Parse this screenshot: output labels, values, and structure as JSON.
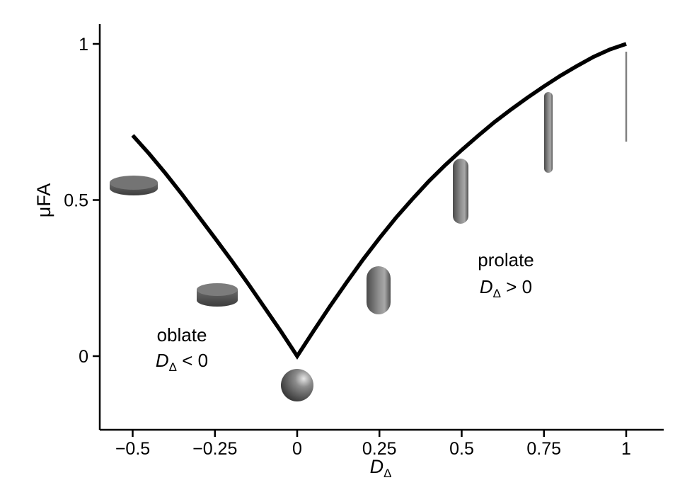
{
  "chart_data": {
    "type": "line",
    "title": "",
    "xlabel": "D",
    "xlabel_sub": "Δ",
    "ylabel": "μFA",
    "xlim": [
      -0.55,
      1.1
    ],
    "ylim": [
      -0.22,
      1.07
    ],
    "xticks": [
      -0.5,
      -0.25,
      0,
      0.25,
      0.5,
      0.75,
      1
    ],
    "xtick_labels": [
      "−0.5",
      "−0.25",
      "0",
      "0.25",
      "0.5",
      "0.75",
      "1"
    ],
    "yticks": [
      0,
      0.5,
      1
    ],
    "ytick_labels": [
      "0",
      "0.5",
      "1"
    ],
    "grid": false,
    "series": [
      {
        "x": [
          -0.5,
          -0.45,
          -0.4,
          -0.35,
          -0.3,
          -0.25,
          -0.2,
          -0.15,
          -0.1,
          -0.05,
          0,
          0.05,
          0.1,
          0.15,
          0.2,
          0.25,
          0.3,
          0.35,
          0.4,
          0.45,
          0.5,
          0.55,
          0.6,
          0.65,
          0.7,
          0.75,
          0.8,
          0.85,
          0.9,
          0.95,
          1
        ],
        "y": [
          0.707,
          0.648,
          0.585,
          0.518,
          0.448,
          0.378,
          0.307,
          0.233,
          0.157,
          0.08,
          0,
          0.081,
          0.16,
          0.236,
          0.309,
          0.378,
          0.443,
          0.503,
          0.56,
          0.612,
          0.66,
          0.706,
          0.75,
          0.79,
          0.828,
          0.864,
          0.898,
          0.929,
          0.958,
          0.982,
          1.0
        ],
        "color": "#000000"
      }
    ],
    "annotations": [
      {
        "id": "oblate",
        "text": "oblate",
        "formula_var": "D",
        "formula_sub": "Δ",
        "formula_rest": " < 0"
      },
      {
        "id": "prolate",
        "text": "prolate",
        "formula_var": "D",
        "formula_sub": "Δ",
        "formula_rest": " > 0"
      }
    ],
    "glyph_color": "#7a7a7a"
  }
}
